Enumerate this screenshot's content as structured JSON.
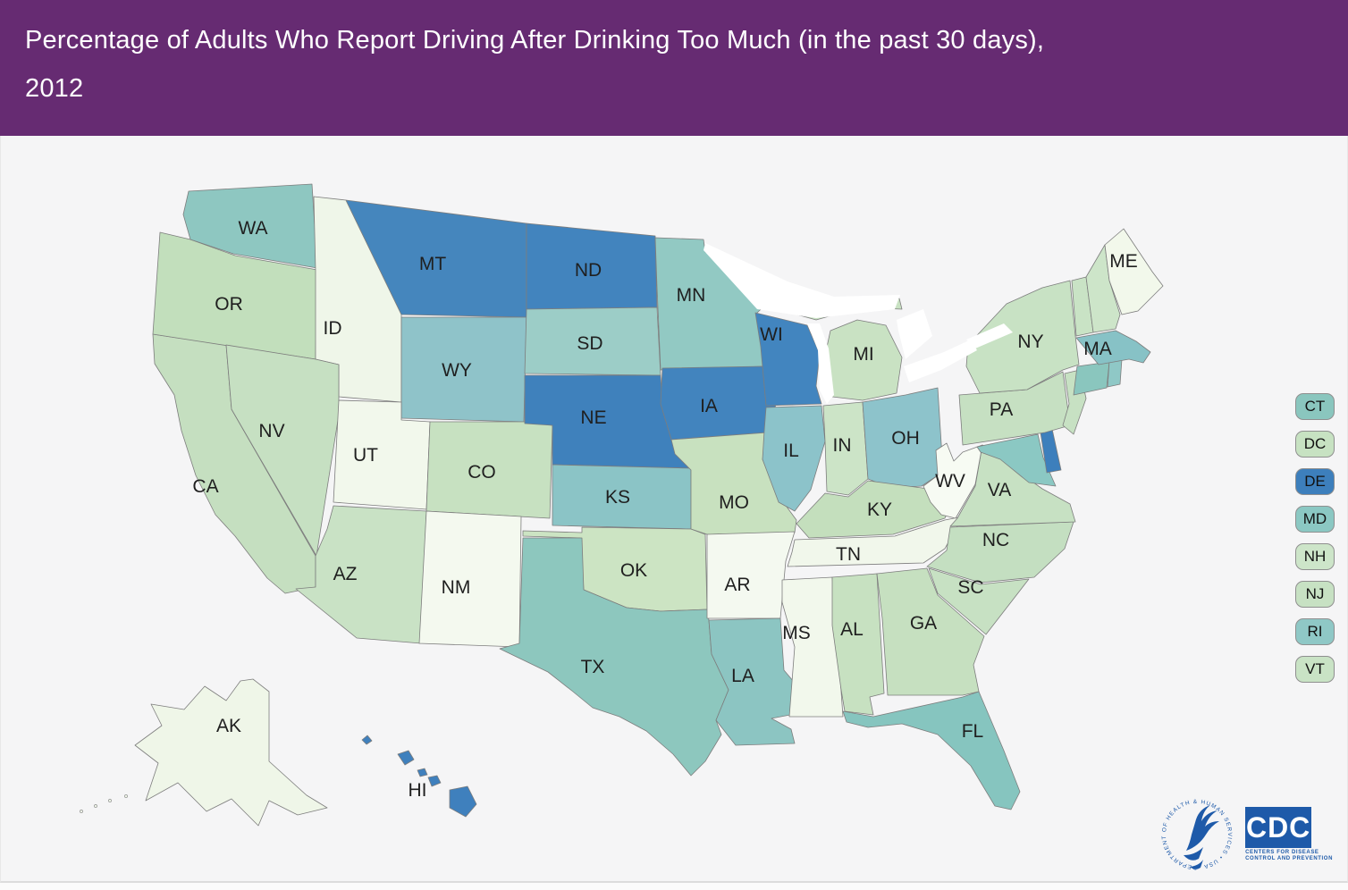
{
  "header": {
    "title_line1": "Percentage of Adults Who Report Driving After Drinking Too Much (in the past 30 days),",
    "title_line2": "2012",
    "background_color": "#662B72",
    "text_color": "#FFFFFF"
  },
  "map": {
    "panel_background": "#F5F5F6",
    "water_color": "#FFFFFF",
    "state_border_color": "#7D7D7D",
    "states": [
      {
        "abbr": "CA",
        "fill": "#C5DFC0",
        "label_on_map": true
      },
      {
        "abbr": "OR",
        "fill": "#C2DFBC",
        "label_on_map": true
      },
      {
        "abbr": "WA",
        "fill": "#8EC7C1",
        "label_on_map": true
      },
      {
        "abbr": "ID",
        "fill": "#EFF6E9",
        "label_on_map": true
      },
      {
        "abbr": "MT",
        "fill": "#4586BD",
        "label_on_map": true
      },
      {
        "abbr": "WY",
        "fill": "#8FC3C9",
        "label_on_map": true
      },
      {
        "abbr": "NV",
        "fill": "#C6E0C2",
        "label_on_map": true
      },
      {
        "abbr": "UT",
        "fill": "#F2F8EC",
        "label_on_map": true
      },
      {
        "abbr": "CO",
        "fill": "#C7E1C1",
        "label_on_map": true
      },
      {
        "abbr": "AZ",
        "fill": "#C9E2C5",
        "label_on_map": true
      },
      {
        "abbr": "NM",
        "fill": "#F4F9EF",
        "label_on_map": true
      },
      {
        "abbr": "ND",
        "fill": "#4284BE",
        "label_on_map": true
      },
      {
        "abbr": "SD",
        "fill": "#9CCDC7",
        "label_on_map": true
      },
      {
        "abbr": "NE",
        "fill": "#3F81BC",
        "label_on_map": true
      },
      {
        "abbr": "KS",
        "fill": "#8BC4C6",
        "label_on_map": true
      },
      {
        "abbr": "OK",
        "fill": "#CCE4C3",
        "label_on_map": true
      },
      {
        "abbr": "TX",
        "fill": "#8DC7BE",
        "label_on_map": true
      },
      {
        "abbr": "MN",
        "fill": "#92C9C3",
        "label_on_map": true
      },
      {
        "abbr": "IA",
        "fill": "#4284BE",
        "label_on_map": true
      },
      {
        "abbr": "MO",
        "fill": "#C8E1BF",
        "label_on_map": true
      },
      {
        "abbr": "AR",
        "fill": "#F4F9F0",
        "label_on_map": true
      },
      {
        "abbr": "LA",
        "fill": "#8CC5C2",
        "label_on_map": true
      },
      {
        "abbr": "WI",
        "fill": "#4285BF",
        "label_on_map": true
      },
      {
        "abbr": "IL",
        "fill": "#8CC3CA",
        "label_on_map": true
      },
      {
        "abbr": "MI",
        "fill": "#C9E2C3",
        "label_on_map": true
      },
      {
        "abbr": "IN",
        "fill": "#CCE4C7",
        "label_on_map": true
      },
      {
        "abbr": "OH",
        "fill": "#8DC3CB",
        "label_on_map": true
      },
      {
        "abbr": "KY",
        "fill": "#C4DFBD",
        "label_on_map": true
      },
      {
        "abbr": "TN",
        "fill": "#F1F7EB",
        "label_on_map": true
      },
      {
        "abbr": "MS",
        "fill": "#F2F8EC",
        "label_on_map": true
      },
      {
        "abbr": "AL",
        "fill": "#C7E1C1",
        "label_on_map": true
      },
      {
        "abbr": "GA",
        "fill": "#C6E0C0",
        "label_on_map": true
      },
      {
        "abbr": "FL",
        "fill": "#86C5BF",
        "label_on_map": true
      },
      {
        "abbr": "SC",
        "fill": "#C7E1C3",
        "label_on_map": true
      },
      {
        "abbr": "NC",
        "fill": "#C4DFC1",
        "label_on_map": true
      },
      {
        "abbr": "VA",
        "fill": "#C7E1C3",
        "label_on_map": true
      },
      {
        "abbr": "WV",
        "fill": "#F7FBF3",
        "label_on_map": true
      },
      {
        "abbr": "MD",
        "fill": "#8BC8C3",
        "label_on_map": false
      },
      {
        "abbr": "DE",
        "fill": "#3D7FBC",
        "label_on_map": false
      },
      {
        "abbr": "PA",
        "fill": "#C6E0C2",
        "label_on_map": true
      },
      {
        "abbr": "NJ",
        "fill": "#C7E1C3",
        "label_on_map": false
      },
      {
        "abbr": "NY",
        "fill": "#C8E2C4",
        "label_on_map": true
      },
      {
        "abbr": "CT",
        "fill": "#8AC6BE",
        "label_on_map": false
      },
      {
        "abbr": "RI",
        "fill": "#8FC8C6",
        "label_on_map": false
      },
      {
        "abbr": "MA",
        "fill": "#87C2C6",
        "label_on_map": true
      },
      {
        "abbr": "VT",
        "fill": "#C9E3C5",
        "label_on_map": false
      },
      {
        "abbr": "NH",
        "fill": "#CDE5C9",
        "label_on_map": false
      },
      {
        "abbr": "ME",
        "fill": "#F2F8EB",
        "label_on_map": true
      },
      {
        "abbr": "DC",
        "fill": "#C7E2C2",
        "label_on_map": false
      },
      {
        "abbr": "AK",
        "fill": "#EFF6E8",
        "label_on_map": true
      },
      {
        "abbr": "HI",
        "fill": "#3F80BD",
        "label_on_map": true
      }
    ]
  },
  "legend": {
    "items": [
      {
        "abbr": "CT",
        "fill": "#8AC6BE"
      },
      {
        "abbr": "DC",
        "fill": "#C7E2C2"
      },
      {
        "abbr": "DE",
        "fill": "#3D7FBC"
      },
      {
        "abbr": "MD",
        "fill": "#8BC8C3"
      },
      {
        "abbr": "NH",
        "fill": "#CDE5C9"
      },
      {
        "abbr": "NJ",
        "fill": "#C7E1C3"
      },
      {
        "abbr": "RI",
        "fill": "#8FC8C6"
      },
      {
        "abbr": "VT",
        "fill": "#C9E3C5"
      }
    ]
  },
  "logos": {
    "brand_color": "#1E5AA9",
    "hhs_ring_text": "DEPARTMENT OF HEALTH & HUMAN SERVICES • USA",
    "cdc_acronym": "CDC",
    "cdc_sub_line1": "CENTERS FOR DISEASE",
    "cdc_sub_line2": "CONTROL AND PREVENTION"
  }
}
